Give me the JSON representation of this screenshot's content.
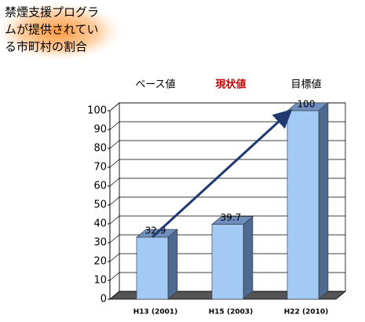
{
  "chart_data": {
    "type": "bar3d",
    "title": [
      "禁煙支援プログラ",
      "ムが提供されてい",
      "る市町村の割合"
    ],
    "phase_labels": [
      "ベース値",
      "現状値",
      "目標値"
    ],
    "phase_colors": [
      "#000000",
      "#cc0000",
      "#000000"
    ],
    "categories": [
      "H13 (2001)",
      "H15 (2003)",
      "H22 (2010)"
    ],
    "values": [
      32.9,
      39.7,
      100
    ],
    "color": "#a3c9f5",
    "ylim": [
      0,
      100
    ],
    "yticks": [
      0,
      10,
      20,
      30,
      40,
      50,
      60,
      70,
      80,
      90,
      100
    ],
    "grid": true
  }
}
